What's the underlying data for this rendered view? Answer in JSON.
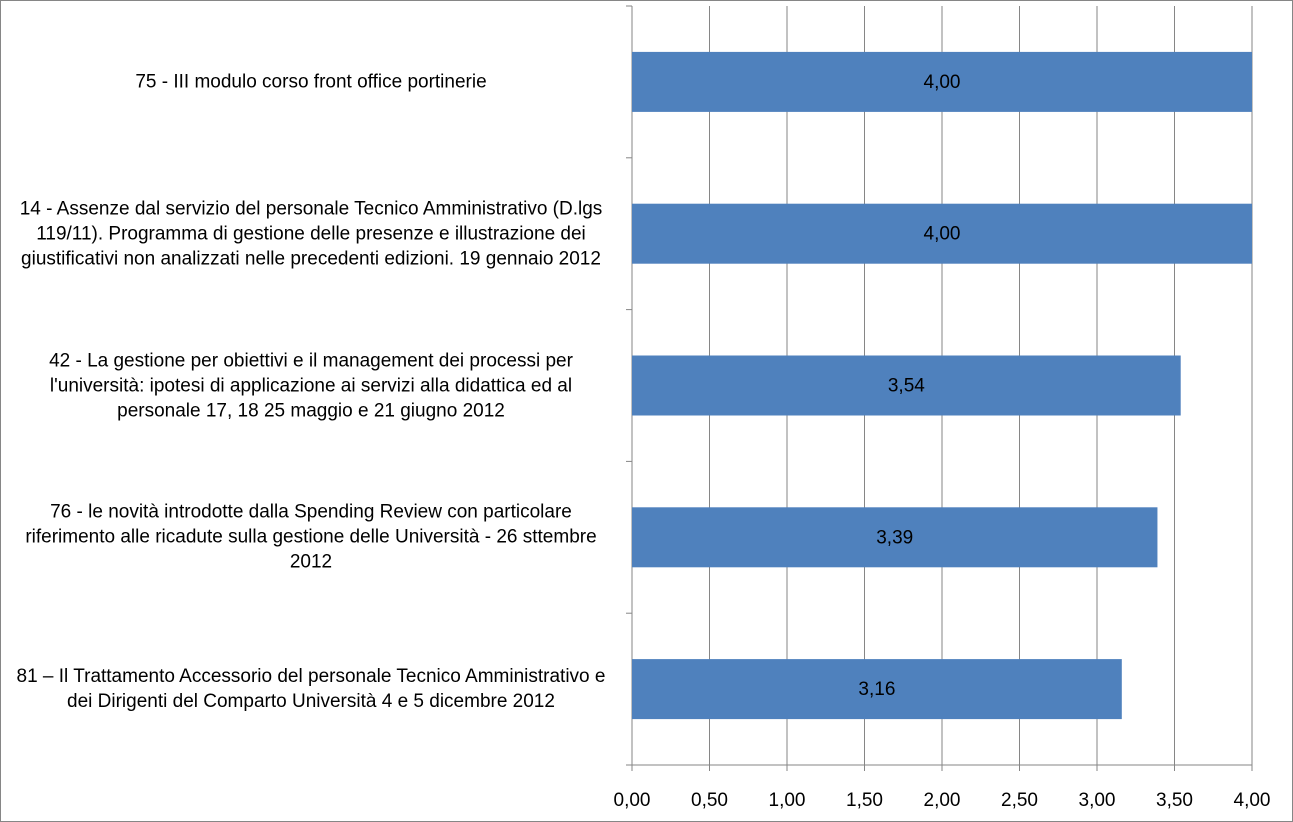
{
  "chart_data": {
    "type": "barh",
    "categories": [
      "75 - III modulo corso front office portinerie",
      "14 - Assenze dal servizio del personale Tecnico Amministrativo (D.lgs 119/11). Programma di gestione delle presenze e illustrazione dei giustificativi non analizzati nelle precedenti edizioni. 19 gennaio 2012",
      "42 - La gestione per obiettivi e il management dei processi per l'università: ipotesi di applicazione ai servizi alla didattica ed al personale 17, 18 25 maggio e 21 giugno 2012",
      "76 - le novità introdotte dalla Spending Review con particolare riferimento alle ricadute sulla gestione delle Università - 26 sttembre 2012",
      "81 – Il Trattamento Accessorio del personale Tecnico Amministrativo e dei Dirigenti del Comparto Università 4 e 5 dicembre 2012"
    ],
    "values": [
      4.0,
      4.0,
      3.54,
      3.39,
      3.16
    ],
    "value_labels": [
      "4,00",
      "4,00",
      "3,54",
      "3,39",
      "3,16"
    ],
    "color": "#4f81bd",
    "xlim": [
      0,
      4
    ],
    "xticks": [
      {
        "value": 0,
        "label": "0,00"
      },
      {
        "value": 0.5,
        "label": "0,50"
      },
      {
        "value": 1,
        "label": "1,00"
      },
      {
        "value": 1.5,
        "label": "1,50"
      },
      {
        "value": 2,
        "label": "2,00"
      },
      {
        "value": 2.5,
        "label": "2,50"
      },
      {
        "value": 3,
        "label": "3,00"
      },
      {
        "value": 3.5,
        "label": "3,50"
      },
      {
        "value": 4,
        "label": "4,00"
      }
    ],
    "grid": true
  }
}
